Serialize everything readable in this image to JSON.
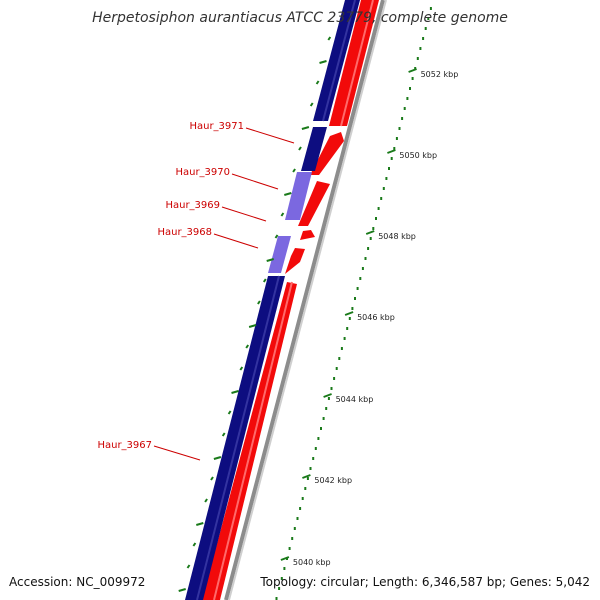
{
  "title": "Herpetosiphon aurantiacus ATCC 23779, complete genome",
  "footer": {
    "accession": "Accession: NC_009972",
    "topology": "Topology: circular; Length: 6,346,587 bp; Genes: 5,042"
  },
  "colors": {
    "forward_strand": "#0d0d80",
    "reverse_strand": "#f20a0a",
    "highlight": "#7b68e0",
    "gene_label": "#cc0000",
    "ruler_ticks": "#1a7a1a",
    "backbone": "#8c8c8c"
  },
  "ruler": {
    "unit": "kbp",
    "labels": [
      "5052 kbp",
      "5050 kbp",
      "5048 kbp",
      "5046 kbp",
      "5044 kbp",
      "5042 kbp",
      "5040 kbp"
    ]
  },
  "genes": [
    {
      "label": "Haur_3971",
      "strand": "forward"
    },
    {
      "label": "Haur_3970",
      "strand": "forward"
    },
    {
      "label": "Haur_3969",
      "strand": "forward"
    },
    {
      "label": "Haur_3968",
      "strand": "forward"
    },
    {
      "label": "Haur_3967",
      "strand": "forward"
    }
  ]
}
